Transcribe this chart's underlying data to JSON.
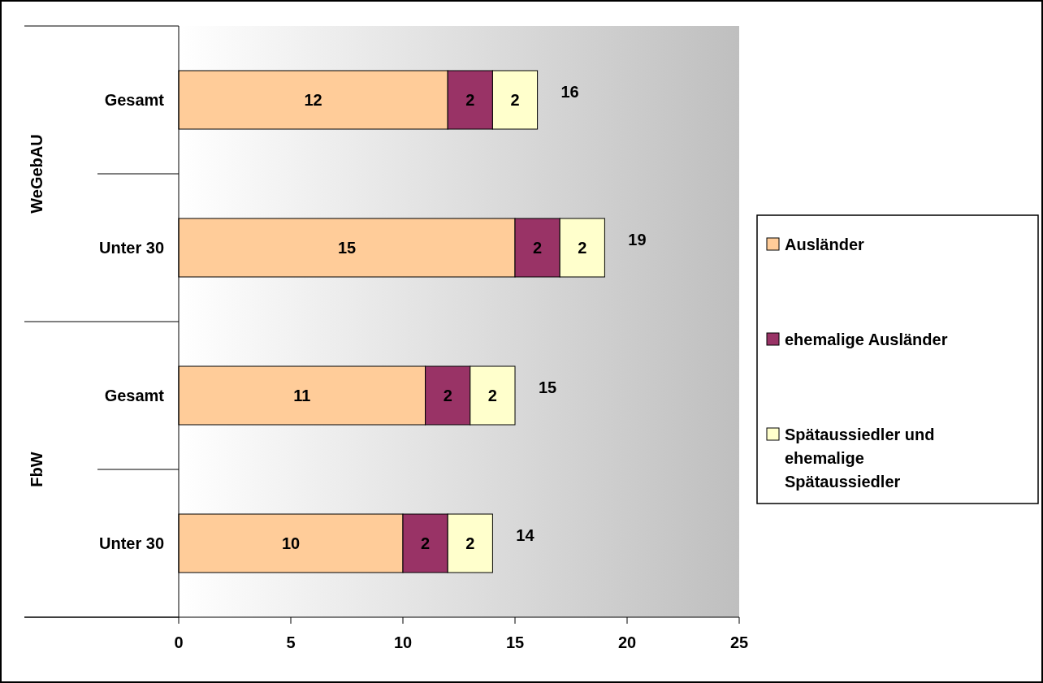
{
  "chart_data": {
    "type": "bar",
    "orientation": "horizontal",
    "stacked": true,
    "categories": [
      "Gesamt",
      "Unter 30",
      "Gesamt",
      "Unter 30"
    ],
    "series": [
      {
        "name": "Ausländer",
        "color": "#ffcc99",
        "values": [
          12,
          15,
          11,
          10
        ]
      },
      {
        "name": "ehemalige Ausländer",
        "color": "#993366",
        "values": [
          2,
          2,
          2,
          2
        ]
      },
      {
        "name": "Spätaussiedler und ehemalige Spätaussiedler",
        "color": "#ffffcc",
        "values": [
          2,
          2,
          2,
          2
        ]
      }
    ],
    "totals": [
      "16",
      "19",
      "15",
      "14"
    ],
    "data_labels": true,
    "annotations": [
      "WeGebAU",
      "FbW"
    ],
    "xlim": [
      0,
      25
    ],
    "xticks": [
      0,
      5,
      10,
      15,
      20,
      25
    ],
    "grid": false,
    "legend": "right"
  }
}
